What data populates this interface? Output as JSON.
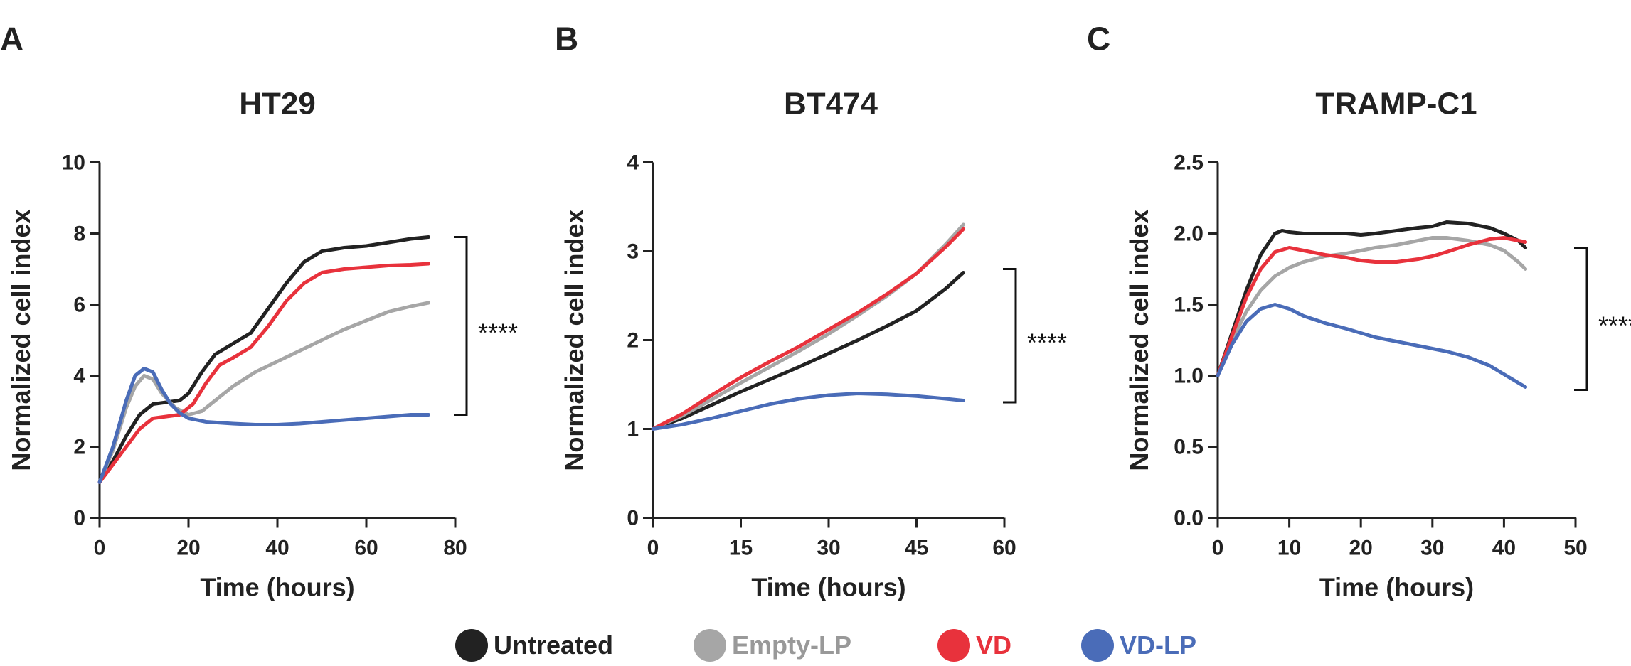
{
  "legend": [
    {
      "name": "Untreated",
      "color": "#222222",
      "text_color": "#222222"
    },
    {
      "name": "Empty-LP",
      "color": "#a6a6a6",
      "text_color": "#999999"
    },
    {
      "name": "VD",
      "color": "#e8323c",
      "text_color": "#e8323c"
    },
    {
      "name": "VD-LP",
      "color": "#4a6cb8",
      "text_color": "#4a6cb8"
    }
  ],
  "significance": "****",
  "chart_data": [
    {
      "type": "line",
      "panel": "A",
      "title": "HT29",
      "xlabel": "Time (hours)",
      "ylabel": "Normalized cell index",
      "xlim": [
        0,
        80
      ],
      "ylim": [
        0,
        10
      ],
      "xticks": [
        0,
        20,
        40,
        60,
        80
      ],
      "yticks": [
        0,
        2,
        4,
        6,
        8,
        10
      ],
      "xtick_labels": [
        "0",
        "20",
        "40",
        "60",
        "80"
      ],
      "ytick_labels": [
        "0",
        "2",
        "4",
        "6",
        "8",
        "10"
      ],
      "bracket": [
        2.9,
        7.9
      ],
      "series": [
        {
          "name": "Untreated",
          "color": "#222222",
          "x": [
            0,
            3,
            6,
            9,
            12,
            15,
            18,
            20,
            23,
            26,
            30,
            34,
            38,
            42,
            46,
            50,
            55,
            60,
            65,
            70,
            74
          ],
          "y": [
            1.0,
            1.6,
            2.3,
            2.9,
            3.2,
            3.25,
            3.3,
            3.5,
            4.1,
            4.6,
            4.9,
            5.2,
            5.9,
            6.6,
            7.2,
            7.5,
            7.6,
            7.65,
            7.75,
            7.85,
            7.9
          ]
        },
        {
          "name": "Empty-LP",
          "color": "#a6a6a6",
          "x": [
            0,
            3,
            6,
            8,
            10,
            12,
            14,
            17,
            20,
            23,
            26,
            30,
            35,
            40,
            45,
            50,
            55,
            60,
            65,
            70,
            74
          ],
          "y": [
            1.0,
            1.9,
            3.1,
            3.7,
            4.0,
            3.9,
            3.5,
            3.1,
            2.9,
            3.0,
            3.3,
            3.7,
            4.1,
            4.4,
            4.7,
            5.0,
            5.3,
            5.55,
            5.8,
            5.95,
            6.05
          ]
        },
        {
          "name": "VD",
          "color": "#e8323c",
          "x": [
            0,
            3,
            6,
            9,
            12,
            15,
            18,
            21,
            24,
            27,
            30,
            34,
            38,
            42,
            46,
            50,
            55,
            60,
            65,
            70,
            74
          ],
          "y": [
            1.0,
            1.5,
            2.0,
            2.5,
            2.8,
            2.85,
            2.9,
            3.2,
            3.8,
            4.3,
            4.5,
            4.8,
            5.4,
            6.1,
            6.6,
            6.9,
            7.0,
            7.05,
            7.1,
            7.12,
            7.15
          ]
        },
        {
          "name": "VD-LP",
          "color": "#4a6cb8",
          "x": [
            0,
            3,
            6,
            8,
            10,
            12,
            14,
            16,
            18,
            20,
            24,
            30,
            35,
            40,
            45,
            50,
            55,
            60,
            65,
            70,
            74
          ],
          "y": [
            1.0,
            2.0,
            3.3,
            4.0,
            4.2,
            4.1,
            3.6,
            3.2,
            2.95,
            2.8,
            2.7,
            2.65,
            2.62,
            2.62,
            2.65,
            2.7,
            2.75,
            2.8,
            2.85,
            2.9,
            2.9
          ]
        }
      ]
    },
    {
      "type": "line",
      "panel": "B",
      "title": "BT474",
      "xlabel": "Time (hours)",
      "ylabel": "Normalized cell index",
      "xlim": [
        0,
        60
      ],
      "ylim": [
        0,
        4
      ],
      "xticks": [
        0,
        15,
        30,
        45,
        60
      ],
      "yticks": [
        0,
        1,
        2,
        3,
        4
      ],
      "xtick_labels": [
        "0",
        "15",
        "30",
        "45",
        "60"
      ],
      "ytick_labels": [
        "0",
        "1",
        "2",
        "3",
        "4"
      ],
      "bracket": [
        1.3,
        2.8
      ],
      "series": [
        {
          "name": "Untreated",
          "color": "#222222",
          "x": [
            0,
            5,
            10,
            15,
            20,
            25,
            30,
            35,
            40,
            45,
            50,
            53
          ],
          "y": [
            1.0,
            1.12,
            1.27,
            1.42,
            1.56,
            1.7,
            1.85,
            2.0,
            2.16,
            2.33,
            2.58,
            2.76
          ]
        },
        {
          "name": "Empty-LP",
          "color": "#a6a6a6",
          "x": [
            0,
            5,
            10,
            15,
            20,
            25,
            30,
            35,
            40,
            45,
            50,
            53
          ],
          "y": [
            1.0,
            1.15,
            1.33,
            1.52,
            1.7,
            1.88,
            2.07,
            2.28,
            2.5,
            2.75,
            3.08,
            3.3
          ]
        },
        {
          "name": "VD",
          "color": "#e8323c",
          "x": [
            0,
            5,
            10,
            15,
            20,
            25,
            30,
            35,
            40,
            45,
            50,
            53
          ],
          "y": [
            1.0,
            1.17,
            1.38,
            1.58,
            1.76,
            1.93,
            2.12,
            2.31,
            2.52,
            2.75,
            3.05,
            3.25
          ]
        },
        {
          "name": "VD-LP",
          "color": "#4a6cb8",
          "x": [
            0,
            5,
            10,
            15,
            20,
            25,
            30,
            35,
            40,
            45,
            50,
            53
          ],
          "y": [
            1.0,
            1.05,
            1.12,
            1.2,
            1.28,
            1.34,
            1.38,
            1.4,
            1.39,
            1.37,
            1.34,
            1.32
          ]
        }
      ]
    },
    {
      "type": "line",
      "panel": "C",
      "title": "TRAMP-C1",
      "xlabel": "Time (hours)",
      "ylabel": "Normalized cell index",
      "xlim": [
        0,
        50
      ],
      "ylim": [
        0,
        2.5
      ],
      "xticks": [
        0,
        10,
        20,
        30,
        40,
        50
      ],
      "yticks": [
        0,
        0.5,
        1.0,
        1.5,
        2.0,
        2.5
      ],
      "xtick_labels": [
        "0",
        "10",
        "20",
        "30",
        "40",
        "50"
      ],
      "ytick_labels": [
        "0.0",
        "0.5",
        "1.0",
        "1.5",
        "2.0",
        "2.5"
      ],
      "bracket": [
        0.9,
        1.9
      ],
      "series": [
        {
          "name": "Untreated",
          "color": "#222222",
          "x": [
            0,
            2,
            4,
            6,
            8,
            9,
            10,
            12,
            15,
            18,
            20,
            22,
            25,
            28,
            30,
            32,
            35,
            38,
            40,
            42,
            43
          ],
          "y": [
            1.0,
            1.3,
            1.6,
            1.85,
            2.0,
            2.02,
            2.01,
            2.0,
            2.0,
            2.0,
            1.99,
            2.0,
            2.02,
            2.04,
            2.05,
            2.08,
            2.07,
            2.04,
            2.0,
            1.95,
            1.9
          ]
        },
        {
          "name": "Empty-LP",
          "color": "#a6a6a6",
          "x": [
            0,
            2,
            4,
            6,
            8,
            10,
            12,
            15,
            18,
            20,
            22,
            25,
            28,
            30,
            32,
            35,
            38,
            40,
            42,
            43
          ],
          "y": [
            1.0,
            1.25,
            1.45,
            1.6,
            1.7,
            1.76,
            1.8,
            1.84,
            1.86,
            1.88,
            1.9,
            1.92,
            1.95,
            1.97,
            1.97,
            1.95,
            1.92,
            1.88,
            1.8,
            1.75
          ]
        },
        {
          "name": "VD",
          "color": "#e8323c",
          "x": [
            0,
            2,
            4,
            6,
            8,
            10,
            12,
            15,
            18,
            20,
            22,
            25,
            28,
            30,
            32,
            35,
            38,
            40,
            42,
            43
          ],
          "y": [
            1.0,
            1.28,
            1.55,
            1.75,
            1.87,
            1.9,
            1.88,
            1.85,
            1.83,
            1.81,
            1.8,
            1.8,
            1.82,
            1.84,
            1.87,
            1.92,
            1.96,
            1.97,
            1.95,
            1.94
          ]
        },
        {
          "name": "VD-LP",
          "color": "#4a6cb8",
          "x": [
            0,
            2,
            4,
            6,
            8,
            10,
            12,
            15,
            18,
            20,
            22,
            25,
            28,
            30,
            32,
            35,
            38,
            40,
            42,
            43
          ],
          "y": [
            1.0,
            1.22,
            1.38,
            1.47,
            1.5,
            1.47,
            1.42,
            1.37,
            1.33,
            1.3,
            1.27,
            1.24,
            1.21,
            1.19,
            1.17,
            1.13,
            1.07,
            1.01,
            0.95,
            0.92
          ]
        }
      ]
    }
  ]
}
